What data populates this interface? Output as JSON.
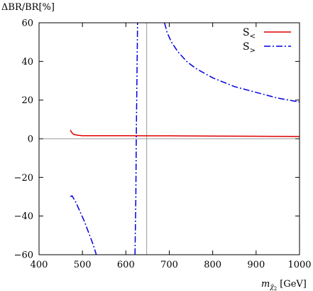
{
  "chart_data": {
    "type": "line",
    "ylabel": "ΔBR/BR[%]",
    "xlabel": "m_{χ̃₂⁰} [GeV]",
    "xlabel_main": "m",
    "xlabel_sub": "χ̃",
    "xlabel_subsub": "2",
    "xlabel_unit": "[GeV]",
    "xlim": [
      400,
      1000
    ],
    "ylim": [
      -60,
      60
    ],
    "x_ticks": [
      400,
      500,
      600,
      700,
      800,
      900,
      1000
    ],
    "y_ticks": [
      -60,
      -40,
      -20,
      0,
      20,
      40,
      60
    ],
    "x_tick_labels": [
      "400",
      "500",
      "600",
      "700",
      "800",
      "900",
      "1000"
    ],
    "y_tick_labels": [
      "−60",
      "−40",
      "−20",
      "0",
      "20",
      "40",
      "60"
    ],
    "reference_lines": {
      "horizontal_y": 0,
      "vertical_x": 648
    },
    "legend_position": "top-right",
    "series": [
      {
        "name": "S<",
        "legend_main": "S",
        "legend_sub": "<",
        "color": "#e00000",
        "dash": "solid",
        "segments": [
          [
            [
              472,
              4.5
            ],
            [
              476,
              3.0
            ],
            [
              480,
              2.2
            ],
            [
              490,
              1.8
            ],
            [
              500,
              1.6
            ],
            [
              550,
              1.6
            ],
            [
              600,
              1.6
            ],
            [
              650,
              1.5
            ],
            [
              700,
              1.5
            ],
            [
              800,
              1.4
            ],
            [
              900,
              1.3
            ],
            [
              1000,
              1.2
            ]
          ]
        ]
      },
      {
        "name": "S>",
        "legend_main": "S",
        "legend_sub": ">",
        "color": "#0000e0",
        "dash": "dashdot",
        "segments": [
          [
            [
              472,
              -30
            ],
            [
              476,
              -29.5
            ],
            [
              485,
              -33
            ],
            [
              495,
              -38
            ],
            [
              505,
              -43
            ],
            [
              515,
              -49
            ],
            [
              525,
              -55
            ],
            [
              532,
              -60
            ]
          ],
          [
            [
              621,
              -60
            ],
            [
              623,
              -30
            ],
            [
              624,
              0
            ],
            [
              625,
              20
            ],
            [
              626,
              40
            ],
            [
              627,
              60
            ]
          ],
          [
            [
              689,
              60
            ],
            [
              695,
              55
            ],
            [
              705,
              50
            ],
            [
              720,
              45
            ],
            [
              740,
              40
            ],
            [
              760,
              36.5
            ],
            [
              780,
              34
            ],
            [
              800,
              31.5
            ],
            [
              850,
              27
            ],
            [
              900,
              24
            ],
            [
              950,
              21
            ],
            [
              1000,
              19
            ]
          ]
        ]
      }
    ]
  }
}
